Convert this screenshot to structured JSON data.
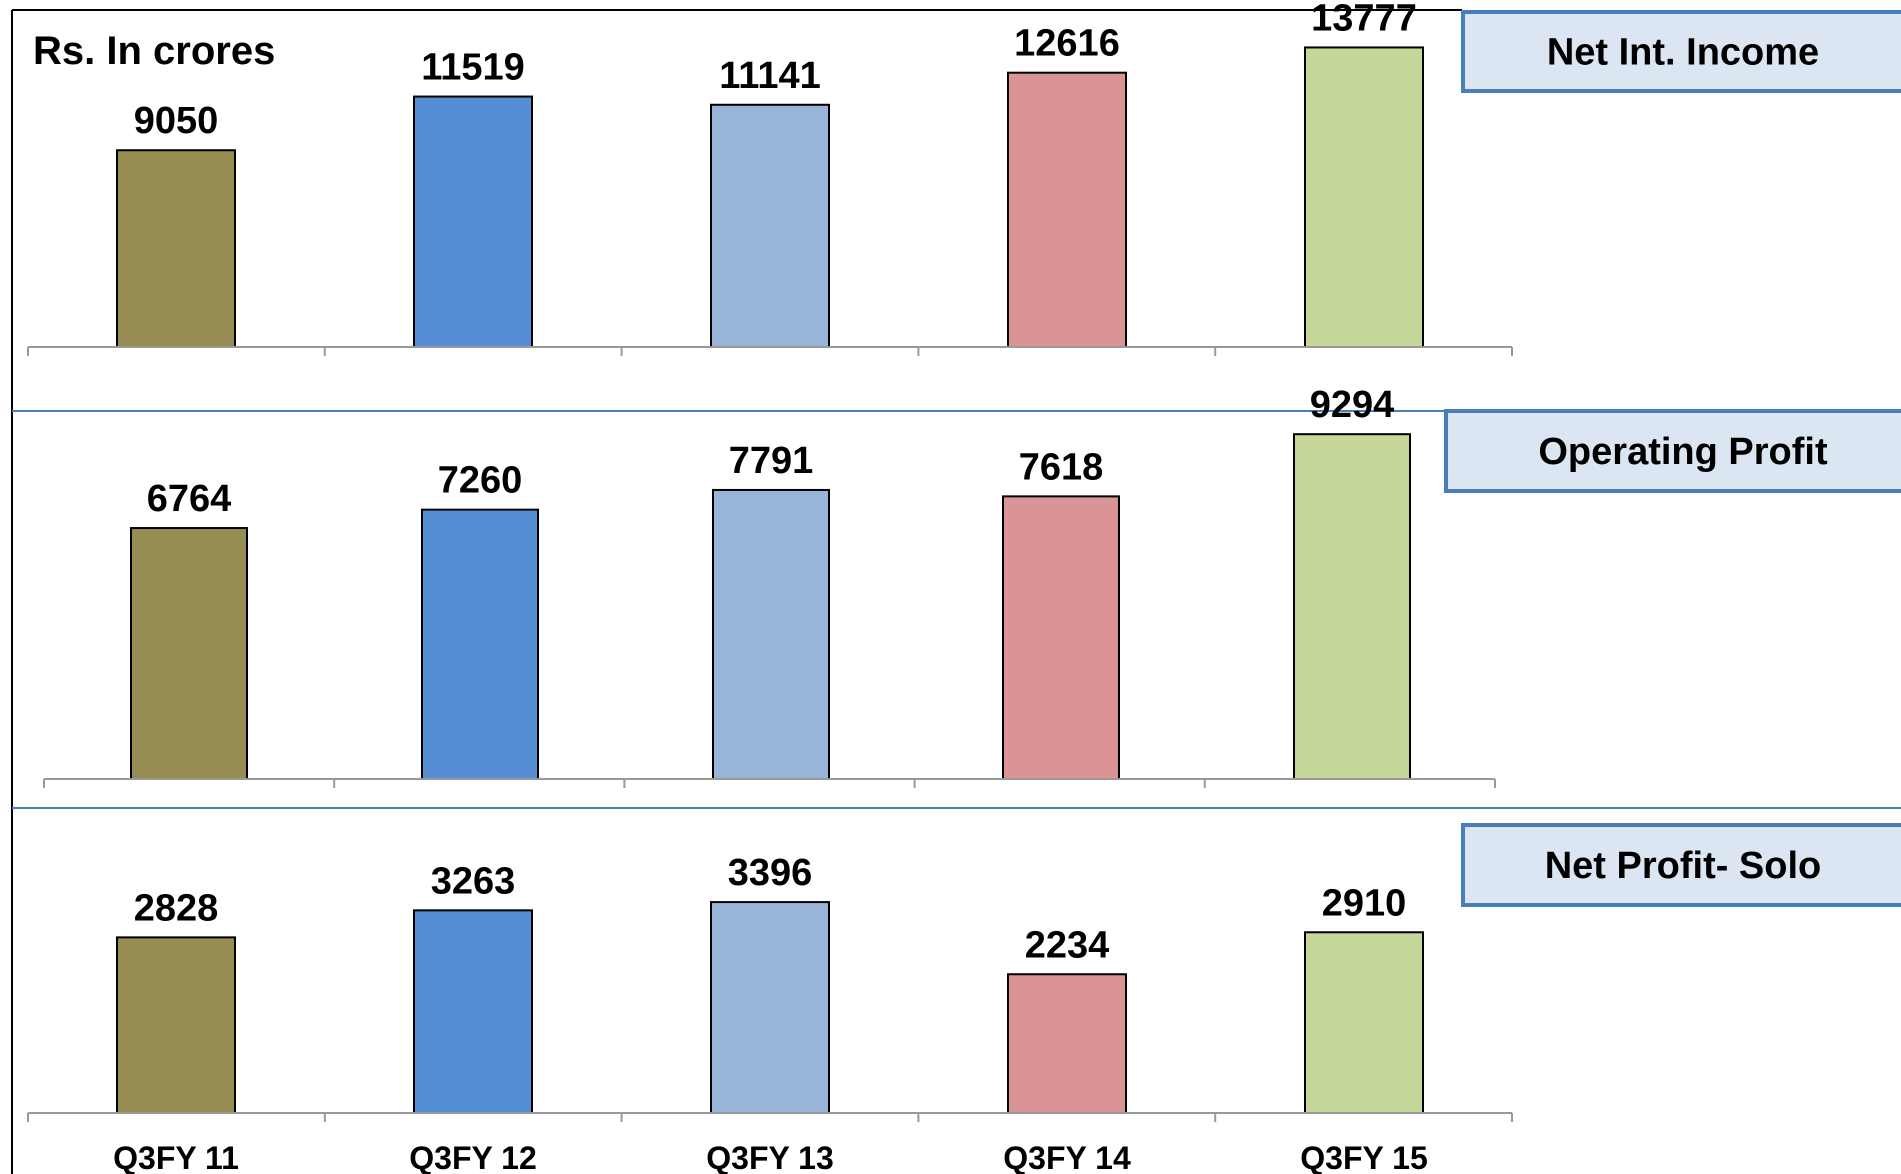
{
  "unit_label": "Rs. In crores",
  "colors": {
    "bars": [
      "#968d53",
      "#558ed5",
      "#98b4d8",
      "#da9495",
      "#c5d89a"
    ],
    "title_box_fill": "#dce6f2",
    "title_box_border": "#4a7ebb",
    "divider": "#4a7ebb",
    "axis": "#999999"
  },
  "chart_data": [
    {
      "type": "bar",
      "title": "Net Int. Income",
      "categories": [
        "Q3FY 11",
        "Q3FY 12",
        "Q3FY 13",
        "Q3FY 14",
        "Q3FY 15"
      ],
      "values": [
        9050,
        11519,
        11141,
        12616,
        13777
      ],
      "ylim": [
        0,
        15500
      ],
      "grid": false,
      "tick_labels_shown": false
    },
    {
      "type": "bar",
      "title": "Operating Profit",
      "categories": [
        "Q3FY 11",
        "Q3FY 12",
        "Q3FY 13",
        "Q3FY 14",
        "Q3FY 15"
      ],
      "values": [
        6764,
        7260,
        7791,
        7618,
        9294
      ],
      "ylim": [
        0,
        10000
      ],
      "grid": false,
      "tick_labels_shown": false
    },
    {
      "type": "bar",
      "title": "Net Profit- Solo",
      "categories": [
        "Q3FY 11",
        "Q3FY 12",
        "Q3FY 13",
        "Q3FY 14",
        "Q3FY 15"
      ],
      "values": [
        2828,
        3263,
        3396,
        2234,
        2910
      ],
      "ylim": [
        0,
        4750
      ],
      "grid": false,
      "tick_labels_shown": true
    }
  ]
}
